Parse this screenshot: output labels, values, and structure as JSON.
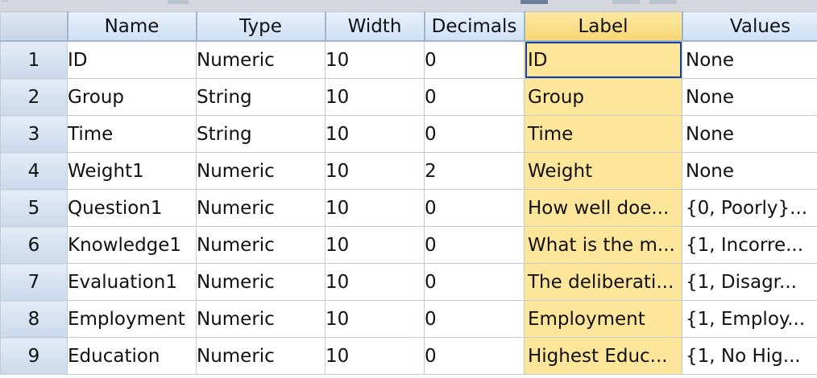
{
  "columns": [
    "Name",
    "Type",
    "Width",
    "Decimals",
    "Label",
    "Values"
  ],
  "rows": [
    {
      "num": "1",
      "name": "ID",
      "type": "Numeric",
      "width": "10",
      "decimals": "0",
      "label": "ID",
      "values": "None"
    },
    {
      "num": "2",
      "name": "Group",
      "type": "String",
      "width": "10",
      "decimals": "0",
      "label": "Group",
      "values": "None"
    },
    {
      "num": "3",
      "name": "Time",
      "type": "String",
      "width": "10",
      "decimals": "0",
      "label": "Time",
      "values": "None"
    },
    {
      "num": "4",
      "name": "Weight1",
      "type": "Numeric",
      "width": "10",
      "decimals": "2",
      "label": "Weight",
      "values": "None"
    },
    {
      "num": "5",
      "name": "Question1",
      "type": "Numeric",
      "width": "10",
      "decimals": "0",
      "label": "How well doe...",
      "values": "{0, Poorly}..."
    },
    {
      "num": "6",
      "name": "Knowledge1",
      "type": "Numeric",
      "width": "10",
      "decimals": "0",
      "label": "What is the m...",
      "values": "{1, Incorre..."
    },
    {
      "num": "7",
      "name": "Evaluation1",
      "type": "Numeric",
      "width": "10",
      "decimals": "0",
      "label": "The deliberati...",
      "values": "{1, Disagr..."
    },
    {
      "num": "8",
      "name": "Employment",
      "type": "Numeric",
      "width": "10",
      "decimals": "0",
      "label": "Employment",
      "values": "{1, Employ..."
    },
    {
      "num": "9",
      "name": "Education",
      "type": "Numeric",
      "width": "10",
      "decimals": "0",
      "label": "Highest Educ...",
      "values": "{1, No Hig..."
    }
  ]
}
